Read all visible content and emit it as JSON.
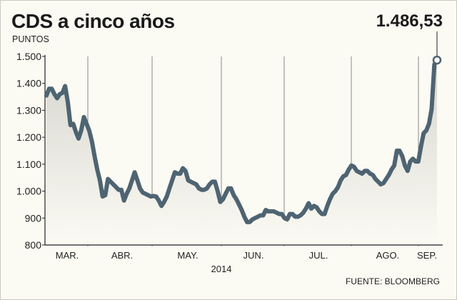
{
  "title": "CDS a cinco años",
  "units": "PUNTOS",
  "last_value_label": "1.486,53",
  "source": "FUENTE: BLOOMBERG",
  "colors": {
    "line": "#4d6472",
    "area_top": "#d9d9d3",
    "background": "#fbfaf3",
    "grid": "#8a8a8a"
  },
  "chart_data": {
    "type": "area",
    "title": "CDS a cinco años",
    "ylabel": "PUNTOS",
    "xlabel": "2014",
    "ylim": [
      800,
      1500
    ],
    "y_ticks": [
      800,
      900,
      1000,
      1100,
      1200,
      1300,
      1400,
      1500
    ],
    "y_tick_labels": [
      "800",
      "900",
      "1.000",
      "1.100",
      "1.200",
      "1.300",
      "1.400",
      "1.500"
    ],
    "months": [
      "MAR.",
      "ABR.",
      "MAY.",
      "JUN.",
      "JUL.",
      "AGO.",
      "SEP."
    ],
    "year": "2014",
    "grid": "vertical month separators",
    "last_value": 1486.53,
    "series": [
      {
        "values": [
          1355,
          1380,
          1380,
          1360,
          1345,
          1360,
          1365,
          1390,
          1330,
          1245,
          1250,
          1220,
          1195,
          1225,
          1275,
          1250,
          1225,
          1185,
          1130,
          1080,
          1040,
          980,
          985,
          1045,
          1035,
          1025,
          1015,
          1005,
          1005,
          965,
          990,
          1010,
          1040,
          1070,
          1040,
          1010,
          995,
          990,
          985,
          980,
          982,
          980,
          965,
          945,
          960,
          980,
          1010,
          1040,
          1070,
          1065,
          1065,
          1085,
          1075,
          1040,
          1035,
          1030,
          1025,
          1010,
          1005,
          1005,
          1010,
          1025,
          1035,
          1035,
          1000,
          960,
          970,
          990,
          1010,
          1010,
          985,
          970,
          950,
          930,
          905,
          885,
          885,
          895,
          900,
          905,
          910,
          910,
          930,
          925,
          925,
          925,
          920,
          915,
          915,
          900,
          895,
          915,
          915,
          905,
          905,
          910,
          920,
          935,
          955,
          935,
          945,
          940,
          925,
          915,
          915,
          945,
          970,
          990,
          1000,
          1015,
          1040,
          1055,
          1060,
          1080,
          1095,
          1090,
          1075,
          1070,
          1065,
          1075,
          1075,
          1065,
          1060,
          1045,
          1035,
          1025,
          1030,
          1045,
          1060,
          1080,
          1095,
          1150,
          1150,
          1130,
          1095,
          1075,
          1110,
          1120,
          1110,
          1110,
          1165,
          1215,
          1225,
          1250,
          1305,
          1470,
          1486.53
        ]
      }
    ]
  }
}
